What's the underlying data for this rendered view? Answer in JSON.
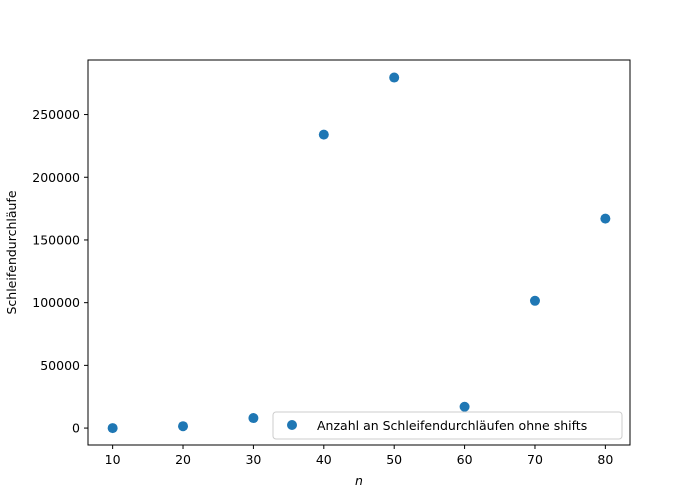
{
  "chart_data": {
    "type": "scatter",
    "xlabel": "n",
    "ylabel": "Schleifendurchläufe",
    "xlim": [
      6.5,
      83.5
    ],
    "ylim": [
      -13500,
      293500
    ],
    "xticks": [
      10,
      20,
      30,
      40,
      50,
      60,
      70,
      80
    ],
    "yticks": [
      0,
      50000,
      100000,
      150000,
      200000,
      250000
    ],
    "grid": false,
    "legend_position": "lower-right",
    "series": [
      {
        "name": "Anzahl an Schleifendurchläufen ohne shifts",
        "color": "#1f77b4",
        "marker": "circle",
        "x": [
          10,
          20,
          30,
          40,
          50,
          60,
          70,
          80
        ],
        "y": [
          0,
          1500,
          8000,
          234000,
          279500,
          17000,
          101500,
          167000
        ]
      }
    ]
  }
}
